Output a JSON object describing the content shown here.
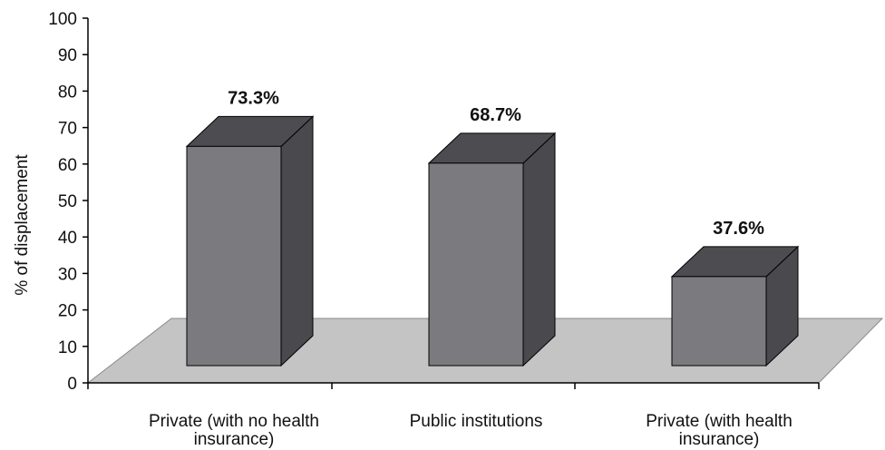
{
  "chart_data": {
    "type": "bar",
    "title": "",
    "xlabel": "",
    "ylabel": "% of displacement",
    "ylim": [
      0,
      100
    ],
    "yticks": [
      0,
      10,
      20,
      30,
      40,
      50,
      60,
      70,
      80,
      90,
      100
    ],
    "categories": [
      [
        "Private (with no health",
        "insurance)"
      ],
      [
        "Public institutions"
      ],
      [
        "Private (with health",
        "insurance)"
      ]
    ],
    "values": [
      73.3,
      68.7,
      37.6
    ],
    "data_labels": [
      "73.3%",
      "68.7%",
      "37.6%"
    ],
    "grid": false,
    "legend": "none",
    "style": "3d",
    "colors": {
      "bar_front": "#7b7b7f",
      "bar_top": "#4d4d51",
      "bar_side": "#4a4a4e",
      "floor": "#c4c4c4",
      "axis": "#000000"
    }
  }
}
